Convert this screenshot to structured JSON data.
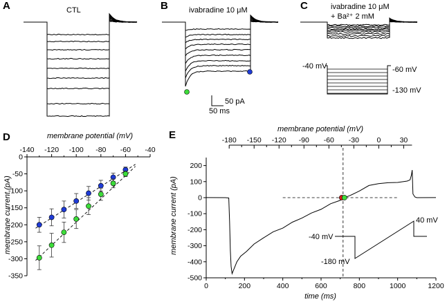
{
  "panels": {
    "A": {
      "letter": "A",
      "label": "CTL"
    },
    "B": {
      "letter": "B",
      "label": "ivabradine 10 μM",
      "scale_current": "50 pA",
      "scale_time": "50 ms"
    },
    "C": {
      "letter": "C",
      "label_line1": "ivabradine 10 μM",
      "label_line2": "+ Ba²⁺ 2 mM",
      "protocol": {
        "holding": "-40 mV",
        "top_step": "-60 mV",
        "bottom_step": "-130 mV"
      }
    },
    "D": {
      "letter": "D"
    },
    "E": {
      "letter": "E",
      "protocol": {
        "holding": "-40 mV",
        "start": "-180 mV",
        "end": "40 mV"
      }
    }
  },
  "colors": {
    "blue": "#1f3bd6",
    "green": "#3ddc3a",
    "red": "#d8201a",
    "trace": "#000000"
  },
  "chart_data": [
    {
      "id": "D",
      "type": "scatter",
      "xlabel": "membrane potential (mV)",
      "ylabel": "membrane current (pA)",
      "xlim": [
        -140,
        -40
      ],
      "ylim": [
        -350,
        0
      ],
      "xticks": [
        -140,
        -120,
        -100,
        -80,
        -60,
        -40
      ],
      "yticks": [
        0,
        -50,
        -100,
        -150,
        -200,
        -250,
        -300,
        -350
      ],
      "x": [
        -130,
        -120,
        -110,
        -100,
        -90,
        -80,
        -70,
        -60
      ],
      "series": [
        {
          "name": "blue",
          "color": "#1f3bd6",
          "values": [
            -200,
            -178,
            -155,
            -130,
            -107,
            -85,
            -60,
            -38
          ],
          "errors": [
            22,
            25,
            25,
            22,
            20,
            16,
            12,
            8
          ]
        },
        {
          "name": "green",
          "color": "#3ddc3a",
          "values": [
            -297,
            -260,
            -222,
            -183,
            -145,
            -110,
            -78,
            -50
          ],
          "errors": [
            35,
            35,
            30,
            28,
            25,
            18,
            13,
            8
          ]
        }
      ],
      "fits": [
        {
          "color": "blue",
          "x1": -133,
          "y1": -210,
          "x2": -52,
          "y2": -22
        },
        {
          "color": "green",
          "x1": -133,
          "y1": -305,
          "x2": -52,
          "y2": -28
        }
      ]
    },
    {
      "id": "E",
      "type": "line",
      "xlabel": "time (ms)",
      "ylabel": "membrane current (pA)",
      "top_xlabel": "membrane potential (mV)",
      "xlim": [
        0,
        1200
      ],
      "ylim": [
        -500,
        250
      ],
      "xticks": [
        0,
        200,
        400,
        600,
        800,
        1000,
        1200
      ],
      "yticks": [
        200,
        100,
        0,
        -100,
        -200,
        -300,
        -400,
        -500
      ],
      "top_ticks": [
        -180,
        -150,
        -120,
        -90,
        -60,
        -30,
        0,
        30
      ],
      "top_axis_range": {
        "mv": [
          -180,
          40
        ],
        "ms": [
          120,
          1075
        ]
      },
      "trace": {
        "t": [
          0,
          100,
          118,
          122,
          126,
          130,
          135,
          145,
          160,
          180,
          210,
          250,
          300,
          350,
          400,
          450,
          500,
          550,
          600,
          650,
          700,
          720,
          750,
          800,
          850,
          900,
          950,
          1000,
          1050,
          1065,
          1072,
          1076,
          1080,
          1090,
          1100,
          1200
        ],
        "i": [
          0,
          0,
          0,
          -150,
          -330,
          -430,
          -470,
          -440,
          -400,
          -370,
          -330,
          -290,
          -250,
          -215,
          -185,
          -155,
          -125,
          -95,
          -68,
          -42,
          -20,
          -5,
          15,
          45,
          70,
          85,
          92,
          100,
          108,
          115,
          140,
          170,
          25,
          5,
          0,
          0
        ]
      },
      "crosshair": {
        "time": 715,
        "current": 0
      },
      "markers": [
        {
          "name": "red",
          "color": "#d8201a",
          "t": 708,
          "i": 0
        },
        {
          "name": "green",
          "color": "#3ddc3a",
          "t": 722,
          "i": 0
        }
      ]
    }
  ]
}
